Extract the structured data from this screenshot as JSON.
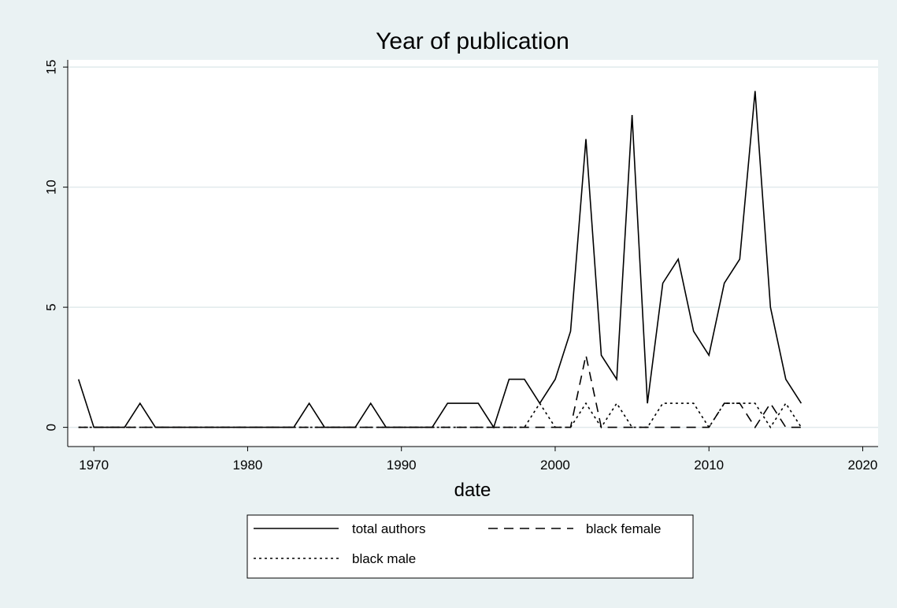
{
  "chart_data": {
    "type": "line",
    "title": "Year of publication",
    "xlabel": "date",
    "ylabel": "",
    "xlim": [
      1968.3,
      2021
    ],
    "ylim": [
      -0.8,
      15.3
    ],
    "xticks": [
      1970,
      1980,
      1990,
      2000,
      2010,
      2020
    ],
    "yticks": [
      0,
      5,
      10,
      15
    ],
    "grid": true,
    "legend_position": "bottom",
    "x": [
      1969,
      1970,
      1971,
      1972,
      1973,
      1974,
      1975,
      1976,
      1977,
      1978,
      1979,
      1980,
      1981,
      1982,
      1983,
      1984,
      1985,
      1986,
      1987,
      1988,
      1989,
      1990,
      1991,
      1992,
      1993,
      1994,
      1995,
      1996,
      1997,
      1998,
      1999,
      2000,
      2001,
      2002,
      2003,
      2004,
      2005,
      2006,
      2007,
      2008,
      2009,
      2010,
      2011,
      2012,
      2013,
      2014,
      2015,
      2016
    ],
    "series": [
      {
        "name": "total authors",
        "dash": "solid",
        "values": [
          2,
          0,
          0,
          0,
          1,
          0,
          0,
          0,
          0,
          0,
          0,
          0,
          0,
          0,
          0,
          1,
          0,
          0,
          0,
          1,
          0,
          0,
          0,
          0,
          1,
          1,
          1,
          0,
          2,
          2,
          1,
          2,
          4,
          12,
          3,
          2,
          13,
          1,
          6,
          7,
          4,
          3,
          6,
          7,
          14,
          5,
          2,
          1
        ]
      },
      {
        "name": "black female",
        "dash": "dashed",
        "values": [
          0,
          0,
          0,
          0,
          0,
          0,
          0,
          0,
          0,
          0,
          0,
          0,
          0,
          0,
          0,
          0,
          0,
          0,
          0,
          0,
          0,
          0,
          0,
          0,
          0,
          0,
          0,
          0,
          0,
          0,
          0,
          0,
          0,
          3,
          0,
          0,
          0,
          0,
          0,
          0,
          0,
          0,
          1,
          1,
          0,
          1,
          0,
          0
        ]
      },
      {
        "name": "black male",
        "dash": "dotted",
        "values": [
          0,
          0,
          0,
          0,
          0,
          0,
          0,
          0,
          0,
          0,
          0,
          0,
          0,
          0,
          0,
          0,
          0,
          0,
          0,
          0,
          0,
          0,
          0,
          0,
          0,
          0,
          0,
          0,
          0,
          0,
          1,
          0,
          0,
          1,
          0,
          1,
          0,
          0,
          1,
          1,
          1,
          0,
          1,
          1,
          1,
          0,
          1,
          0
        ]
      }
    ]
  },
  "colors": {
    "background": "#eaf2f3",
    "plot_area": "#ffffff",
    "grid": "#e1eaec",
    "line": "#000000"
  }
}
